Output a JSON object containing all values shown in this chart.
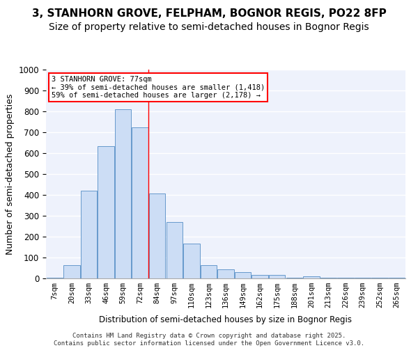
{
  "title1": "3, STANHORN GROVE, FELPHAM, BOGNOR REGIS, PO22 8FP",
  "title2": "Size of property relative to semi-detached houses in Bognor Regis",
  "xlabel": "Distribution of semi-detached houses by size in Bognor Regis",
  "ylabel": "Number of semi-detached properties",
  "categories": [
    "7sqm",
    "20sqm",
    "33sqm",
    "46sqm",
    "59sqm",
    "72sqm",
    "84sqm",
    "97sqm",
    "110sqm",
    "123sqm",
    "136sqm",
    "149sqm",
    "162sqm",
    "175sqm",
    "188sqm",
    "201sqm",
    "213sqm",
    "226sqm",
    "239sqm",
    "252sqm",
    "265sqm"
  ],
  "values": [
    5,
    65,
    420,
    635,
    810,
    725,
    408,
    270,
    168,
    65,
    45,
    30,
    18,
    18,
    5,
    10,
    5,
    2,
    2,
    2,
    5
  ],
  "bar_color": "#ccddf5",
  "bar_edge_color": "#6699cc",
  "annotation_text": "3 STANHORN GROVE: 77sqm\n← 39% of semi-detached houses are smaller (1,418)\n59% of semi-detached houses are larger (2,178) →",
  "annotation_box_color": "white",
  "annotation_box_edge_color": "red",
  "property_bar_index": 5,
  "red_line_x": 5.5,
  "ylim": [
    0,
    1000
  ],
  "yticks": [
    0,
    100,
    200,
    300,
    400,
    500,
    600,
    700,
    800,
    900,
    1000
  ],
  "footer": "Contains HM Land Registry data © Crown copyright and database right 2025.\nContains public sector information licensed under the Open Government Licence v3.0.",
  "bg_color": "#eef2fc",
  "grid_color": "#ffffff",
  "title_fontsize": 11,
  "subtitle_fontsize": 10,
  "tick_fontsize": 7.5,
  "ylabel_fontsize": 9,
  "footer_fontsize": 6.5
}
